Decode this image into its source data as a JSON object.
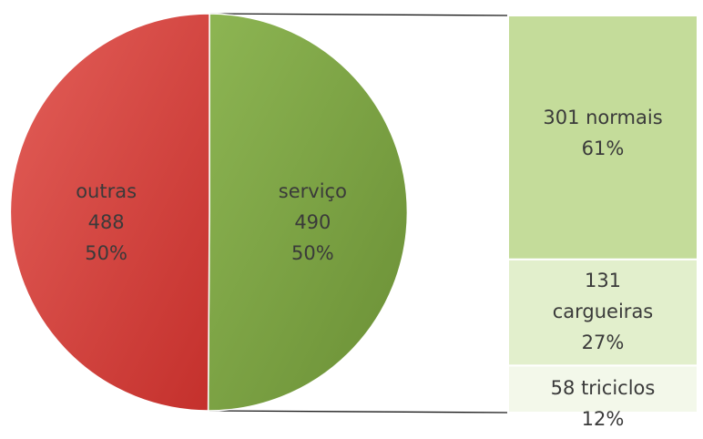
{
  "chart_data": {
    "type": "bar-of-pie",
    "pie": {
      "slices": [
        {
          "label": "serviço",
          "value": 490,
          "percent": "50%",
          "color": "#7fa344"
        },
        {
          "label": "outras",
          "value": 488,
          "percent": "50%",
          "color": "#d7413c"
        }
      ]
    },
    "bar": {
      "segments": [
        {
          "label": "normais",
          "value": 301,
          "percent": "61%",
          "color": "#c4dc9a"
        },
        {
          "label": "cargueiras",
          "value": 131,
          "percent": "27%",
          "color": "#e2efcc"
        },
        {
          "label": "triciclos",
          "value": 58,
          "percent": "12%",
          "color": "#f3f8ea"
        }
      ]
    }
  }
}
